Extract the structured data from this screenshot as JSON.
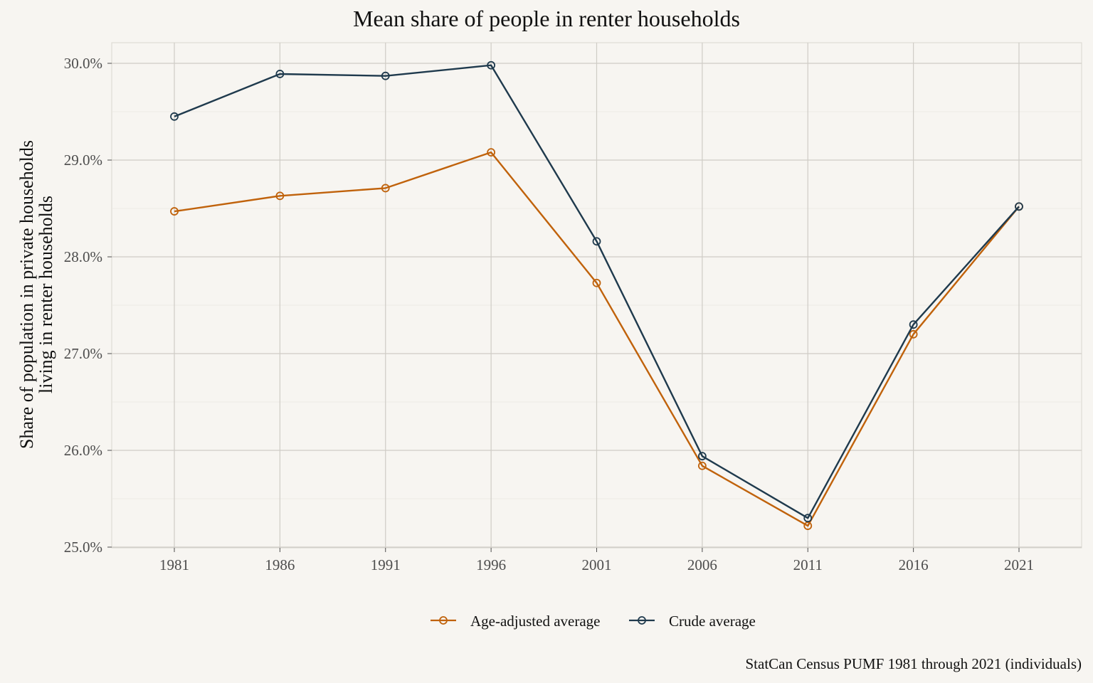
{
  "chart_data": {
    "type": "line",
    "title": "Mean share of people in renter households",
    "ylabel_lines": [
      "Share of population in private households",
      "living in renter households"
    ],
    "xlabel": "",
    "caption": "StatCan Census PUMF 1981 through 2021 (individuals)",
    "x": [
      1981,
      1986,
      1991,
      1996,
      2001,
      2006,
      2011,
      2016,
      2021
    ],
    "x_tick_labels": [
      "1981",
      "1986",
      "1991",
      "1996",
      "2001",
      "2006",
      "2011",
      "2016",
      "2021"
    ],
    "ylim": [
      25.0,
      30.0
    ],
    "y_ticks": [
      25.0,
      26.0,
      27.0,
      28.0,
      29.0,
      30.0
    ],
    "y_tick_labels": [
      "25.0%",
      "26.0%",
      "27.0%",
      "28.0%",
      "29.0%",
      "30.0%"
    ],
    "y_unit": "%",
    "grid": true,
    "legend_position": "bottom",
    "series": [
      {
        "name": "Age-adjusted average",
        "color": "#c0620b",
        "values": [
          28.47,
          28.63,
          28.71,
          29.08,
          27.73,
          25.84,
          25.22,
          27.2,
          28.52
        ]
      },
      {
        "name": "Crude average",
        "color": "#1f3a4d",
        "values": [
          29.45,
          29.89,
          29.87,
          29.98,
          28.16,
          25.94,
          25.3,
          27.3,
          28.52
        ]
      }
    ]
  }
}
